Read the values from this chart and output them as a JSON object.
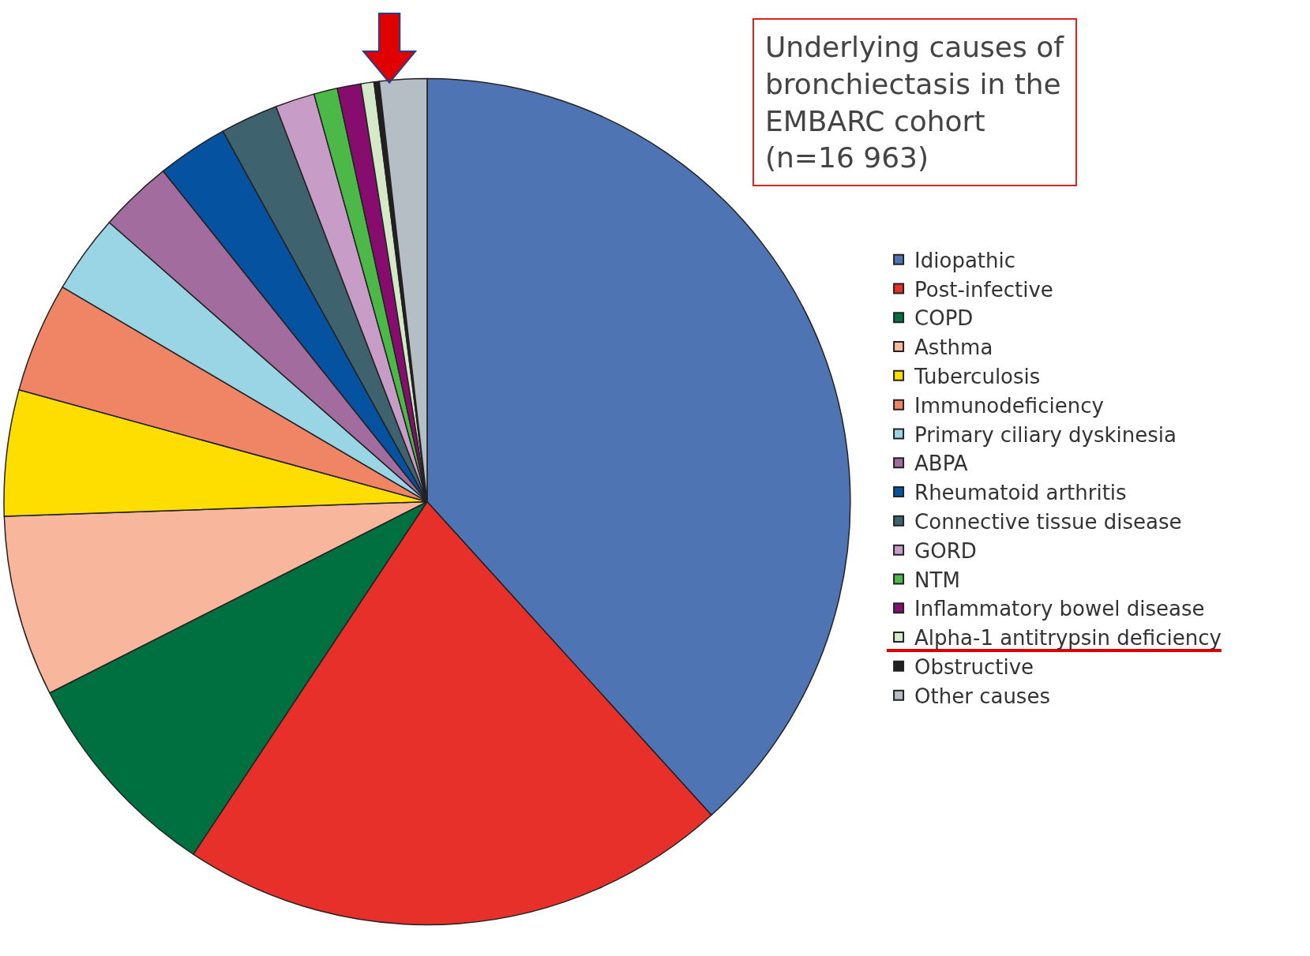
{
  "chart_data": {
    "type": "pie",
    "title": "Underlying causes of\nbronchiectasis in the\nEMBARC cohort\n(n=16 963)",
    "categories": [
      "Idiopathic",
      "Post-infective",
      "COPD",
      "Asthma",
      "Tuberculosis",
      "Immunodeficiency",
      "Primary ciliary dyskinesia",
      "ABPA",
      "Rheumatoid arthritis",
      "Connective tissue disease",
      "GORD",
      "NTM",
      "Inflammatory bowel disease",
      "Alpha-1 antitrypsin deficiency",
      "Obstructive",
      "Other causes"
    ],
    "values": [
      38.2,
      21.0,
      8.2,
      6.9,
      4.8,
      4.2,
      3.0,
      2.8,
      2.7,
      2.2,
      1.5,
      0.9,
      0.9,
      0.5,
      0.2,
      1.8
    ],
    "colors": [
      "#4f74b3",
      "#e8302a",
      "#017040",
      "#f8b69c",
      "#fedd00",
      "#f08566",
      "#9ad5e6",
      "#a36c9e",
      "#0552a0",
      "#3f636e",
      "#c79cc6",
      "#4cb848",
      "#860d6d",
      "#d5e8c8",
      "#231f20",
      "#b5bdc5"
    ],
    "legend": "right"
  }
}
